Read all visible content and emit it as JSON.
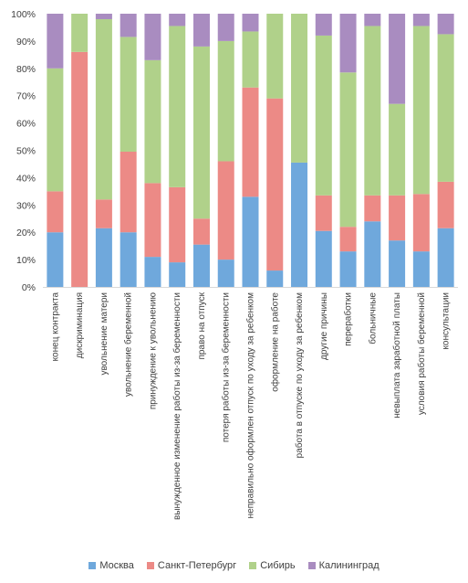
{
  "chart_data": {
    "type": "stacked-bar-100",
    "y_ticks": [
      "0%",
      "10%",
      "20%",
      "30%",
      "40%",
      "50%",
      "60%",
      "70%",
      "80%",
      "90%",
      "100%"
    ],
    "ylim": [
      0,
      100
    ],
    "grid": false,
    "legend_position": "bottom",
    "categories": [
      "конец контракта",
      "дискриминация",
      "увольнение матери",
      "увольнение беременной",
      "принуждение к увольнению",
      "вынужденное изменение работы из-за беременности",
      "право на отпуск",
      "потеря работы из-за беременности",
      "неправильно оформлен отпуск по уходу за ребенком",
      "оформление на работе",
      "работа в отпуске по уходу за ребенком",
      "другие причины",
      "переработки",
      "больничные",
      "невыплата заработной платы",
      "условия работы беременной",
      "консультации"
    ],
    "series": [
      {
        "name": "Москва",
        "color": "#6fa8dc",
        "values": [
          20,
          0,
          21.5,
          20,
          11,
          9,
          15.5,
          10,
          33,
          6,
          45.5,
          20.5,
          13,
          24,
          17,
          13,
          21.5
        ]
      },
      {
        "name": "Санкт-Петербург",
        "color": "#ec8a86",
        "values": [
          15,
          86,
          10.5,
          29.5,
          27,
          27.5,
          9.5,
          36,
          40,
          63,
          0,
          13,
          9,
          9.5,
          16.5,
          21,
          17
        ]
      },
      {
        "name": "Сибирь",
        "color": "#b0d18a",
        "values": [
          45,
          14,
          66,
          42,
          45,
          59,
          63,
          44,
          20.5,
          31,
          54.5,
          58.5,
          56.5,
          62,
          33.5,
          61.5,
          54
        ]
      },
      {
        "name": "Калининград",
        "color": "#a98cc0",
        "values": [
          20,
          0,
          2,
          8.5,
          17,
          4.5,
          12,
          10,
          6.5,
          0,
          0,
          8,
          21.5,
          4.5,
          33,
          4.5,
          7.5
        ]
      }
    ]
  }
}
